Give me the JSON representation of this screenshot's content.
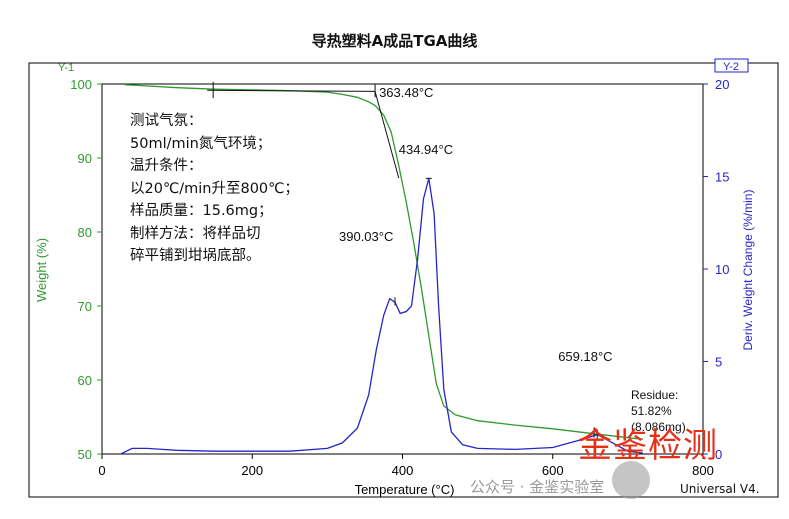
{
  "chart_data": {
    "type": "line",
    "title": "导热塑料A成品TGA曲线",
    "xlabel": "Temperature (°C)",
    "ylabel_left": "Weight (%)",
    "ylabel_right": "Deriv. Weight Change (%/min)",
    "left_axis_tag": "Y-1",
    "right_axis_tag": "Y-2",
    "xlim": [
      0,
      800
    ],
    "ylim_left": [
      50,
      100
    ],
    "ylim_right": [
      0,
      20
    ],
    "x_ticks": [
      0,
      200,
      400,
      600,
      800
    ],
    "y_left_ticks": [
      50,
      60,
      70,
      80,
      90,
      100
    ],
    "y_right_ticks": [
      0,
      5,
      10,
      15,
      20
    ],
    "grid": false,
    "colors": {
      "weight": "#2f9a2f",
      "deriv": "#2626c8",
      "annotation": "#111111"
    },
    "series": [
      {
        "axis": "left",
        "x": [
          30,
          50,
          100,
          150,
          200,
          250,
          300,
          320,
          340,
          355,
          363.5,
          375,
          385,
          395,
          405,
          415,
          425,
          435,
          445,
          455,
          470,
          500,
          550,
          600,
          650,
          700,
          720
        ],
        "values": [
          99.9,
          99.8,
          99.5,
          99.3,
          99.2,
          99.1,
          98.9,
          98.6,
          98.2,
          97.6,
          97.1,
          95.8,
          93.5,
          89.0,
          84.0,
          78.5,
          72.5,
          66.0,
          59.5,
          56.5,
          55.3,
          54.5,
          53.9,
          53.4,
          52.8,
          52.2,
          52.0
        ]
      },
      {
        "axis": "right",
        "x": [
          25,
          40,
          60,
          80,
          100,
          150,
          200,
          250,
          300,
          320,
          340,
          355,
          365,
          375,
          383,
          390,
          397,
          405,
          412,
          420,
          428,
          435,
          442,
          448,
          455,
          465,
          480,
          500,
          550,
          600,
          640,
          659,
          680,
          700,
          720
        ],
        "values": [
          0.0,
          0.3,
          0.3,
          0.25,
          0.2,
          0.15,
          0.15,
          0.15,
          0.3,
          0.6,
          1.4,
          3.2,
          5.6,
          7.5,
          8.4,
          8.2,
          7.6,
          7.7,
          8.0,
          10.5,
          13.8,
          14.9,
          13.0,
          8.0,
          3.5,
          1.2,
          0.5,
          0.3,
          0.25,
          0.35,
          0.8,
          1.05,
          0.6,
          0.15,
          0.05
        ]
      }
    ],
    "annotations": [
      {
        "text": "363.48°C",
        "x": 363.48,
        "axis": "left",
        "y": 97.1
      },
      {
        "text": "434.94°C",
        "x": 434.94,
        "axis": "right",
        "y": 14.9
      },
      {
        "text": "390.03°C",
        "x": 390.03,
        "axis": "right",
        "y": 8.2
      },
      {
        "text": "659.18°C",
        "x": 659.18,
        "axis": "right",
        "y": 1.05
      }
    ],
    "residue": {
      "label": "Residue:",
      "percent": "51.82%",
      "mass": "(8.086mg)"
    }
  },
  "info_lines": [
    "测试气氛：",
    "50ml/min氮气环境；",
    "温升条件：",
    "以20℃/min升至800℃；",
    "样品质量：15.6mg；",
    "制样方法：将样品切",
    "碎平铺到坩埚底部。"
  ],
  "watermark": "金鉴检测",
  "footer_text": "公众号 · 金鉴实验室",
  "footer_software": "Universal V4."
}
